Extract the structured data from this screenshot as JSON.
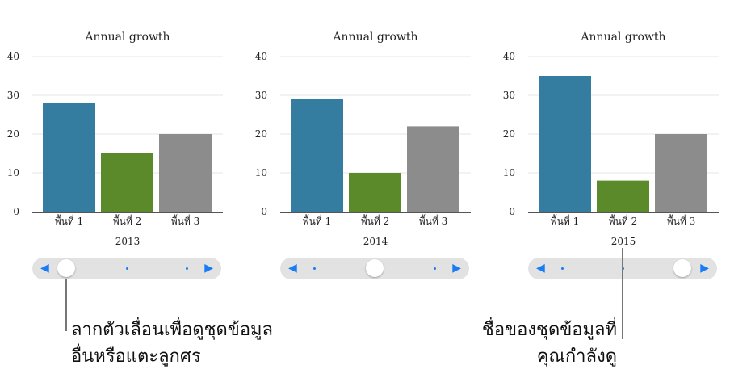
{
  "chart_data": [
    {
      "type": "bar",
      "title": "Annual growth",
      "xlabel": "2013",
      "categories": [
        "พื้นที่ 1",
        "พื้นที่ 2",
        "พื้นที่ 3"
      ],
      "values": [
        28,
        15,
        20
      ],
      "ylim": [
        0,
        40
      ],
      "yticks": [
        "0",
        "10",
        "20",
        "30",
        "40"
      ],
      "grid": true,
      "slider_position": 0
    },
    {
      "type": "bar",
      "title": "Annual growth",
      "xlabel": "2014",
      "categories": [
        "พื้นที่ 1",
        "พื้นที่ 2",
        "พื้นที่ 3"
      ],
      "values": [
        29,
        10,
        22
      ],
      "ylim": [
        0,
        40
      ],
      "yticks": [
        "0",
        "10",
        "20",
        "30",
        "40"
      ],
      "grid": true,
      "slider_position": 1
    },
    {
      "type": "bar",
      "title": "Annual growth",
      "xlabel": "2015",
      "categories": [
        "พื้นที่ 1",
        "พื้นที่ 2",
        "พื้นที่ 3"
      ],
      "values": [
        35,
        8,
        20
      ],
      "ylim": [
        0,
        40
      ],
      "yticks": [
        "0",
        "10",
        "20",
        "30",
        "40"
      ],
      "grid": true,
      "slider_position": 2
    }
  ],
  "colors": {
    "bar_colors": [
      "#347ca0",
      "#5a8a2a",
      "#8c8c8c"
    ],
    "slider_accent": "#1a7cf5"
  },
  "icons": {
    "prev": "◀",
    "next": "▶"
  },
  "callouts": {
    "slider_line1": "ลากตัวเลื่อนเพื่อดูชุดข้อมูล",
    "slider_line2": "อื่นหรือแตะลูกศร",
    "name_line1": "ชื่อของชุดข้อมูลที่",
    "name_line2": "คุณกำลังดู"
  }
}
